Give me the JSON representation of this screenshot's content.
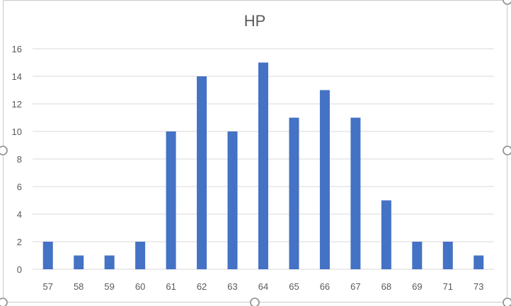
{
  "chart_data": {
    "type": "bar",
    "title": "HP",
    "xlabel": "",
    "ylabel": "",
    "categories": [
      "57",
      "58",
      "59",
      "60",
      "61",
      "62",
      "63",
      "64",
      "65",
      "66",
      "67",
      "68",
      "69",
      "71",
      "73"
    ],
    "values": [
      2,
      1,
      1,
      2,
      10,
      14,
      10,
      15,
      11,
      13,
      11,
      5,
      2,
      2,
      1
    ],
    "ylim": [
      0,
      16
    ],
    "yticks": [
      "0",
      "2",
      "4",
      "6",
      "8",
      "10",
      "12",
      "14",
      "16"
    ],
    "grid": true,
    "legend": "none",
    "colors": {
      "bar": "#4472C4",
      "grid": "#d9d9d9",
      "text": "#595959"
    }
  }
}
